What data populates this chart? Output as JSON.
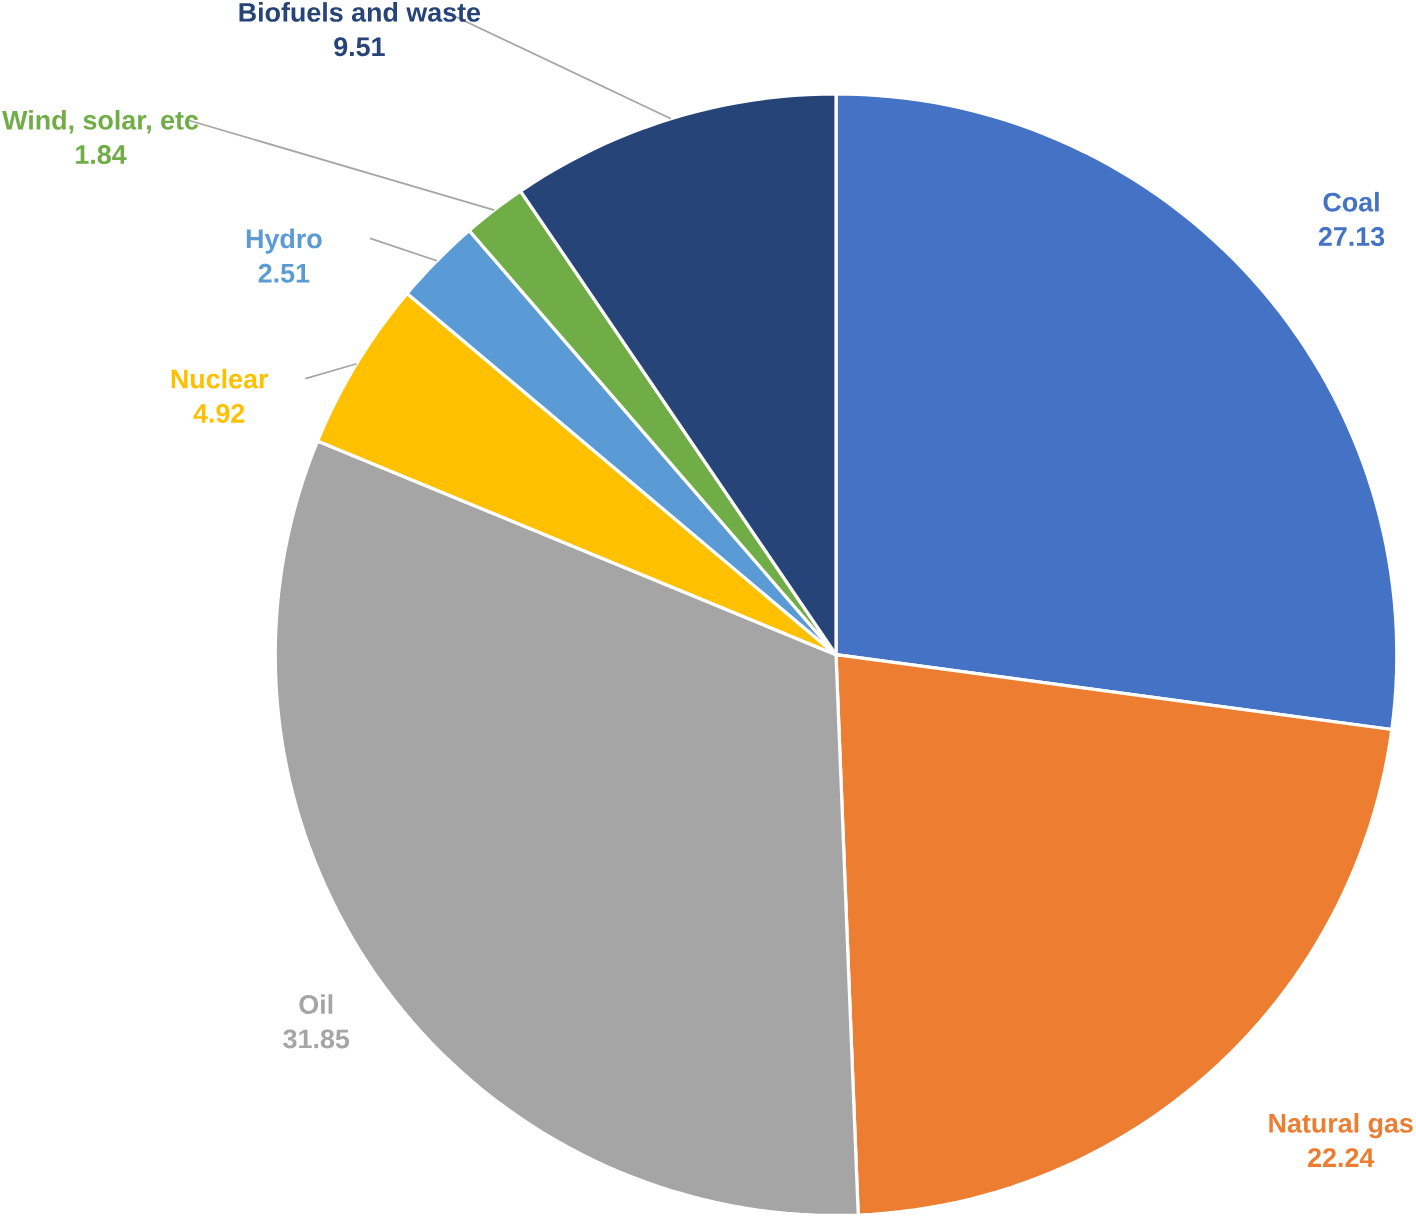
{
  "chart_data": {
    "type": "pie",
    "categories": [
      "Coal",
      "Natural gas",
      "Oil",
      "Nuclear",
      "Hydro",
      "Wind, solar, etc",
      "Biofuels and waste"
    ],
    "values": [
      27.13,
      22.24,
      31.85,
      4.92,
      2.51,
      1.84,
      9.51
    ],
    "colors": [
      "#4472c4",
      "#ed7d31",
      "#a5a5a5",
      "#ffc000",
      "#5b9bd5",
      "#70ad47",
      "#264478"
    ],
    "data_labels": true
  }
}
